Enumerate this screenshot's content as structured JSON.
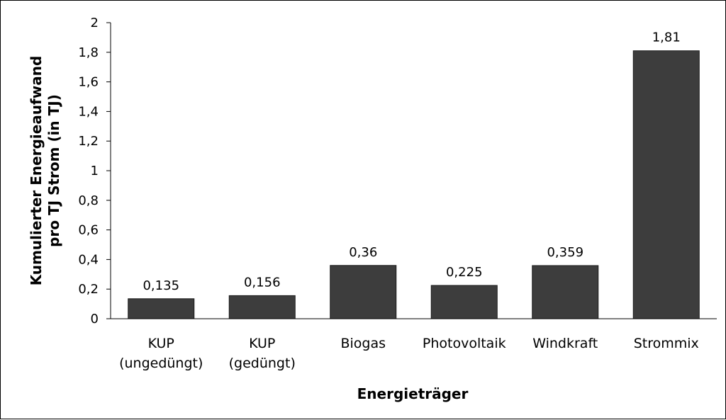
{
  "chart_data": {
    "type": "bar",
    "categories": [
      [
        "KUP",
        "(ungedüngt)"
      ],
      [
        "KUP",
        "(gedüngt)"
      ],
      [
        "Biogas"
      ],
      [
        "Photovoltaik"
      ],
      [
        "Windkraft"
      ],
      [
        "Strommix"
      ]
    ],
    "values": [
      0.135,
      0.156,
      0.36,
      0.225,
      0.359,
      1.81
    ],
    "value_labels": [
      "0,135",
      "0,156",
      "0,36",
      "0,225",
      "0,359",
      "1,81"
    ],
    "xlabel": "Energieträger",
    "ylabel_lines": [
      "Kumulierter Energieaufwand",
      "pro TJ Strom (in TJ)"
    ],
    "ylim": [
      0,
      2
    ],
    "yticks": [
      0,
      0.2,
      0.4,
      0.6,
      0.8,
      1,
      1.2,
      1.4,
      1.6,
      1.8,
      2
    ],
    "ytick_labels": [
      "0",
      "0,2",
      "0,4",
      "0,6",
      "0,8",
      "1",
      "1,2",
      "1,4",
      "1,6",
      "1,8",
      "2"
    ],
    "grid": false,
    "bar_color": "#3d3d3d"
  }
}
